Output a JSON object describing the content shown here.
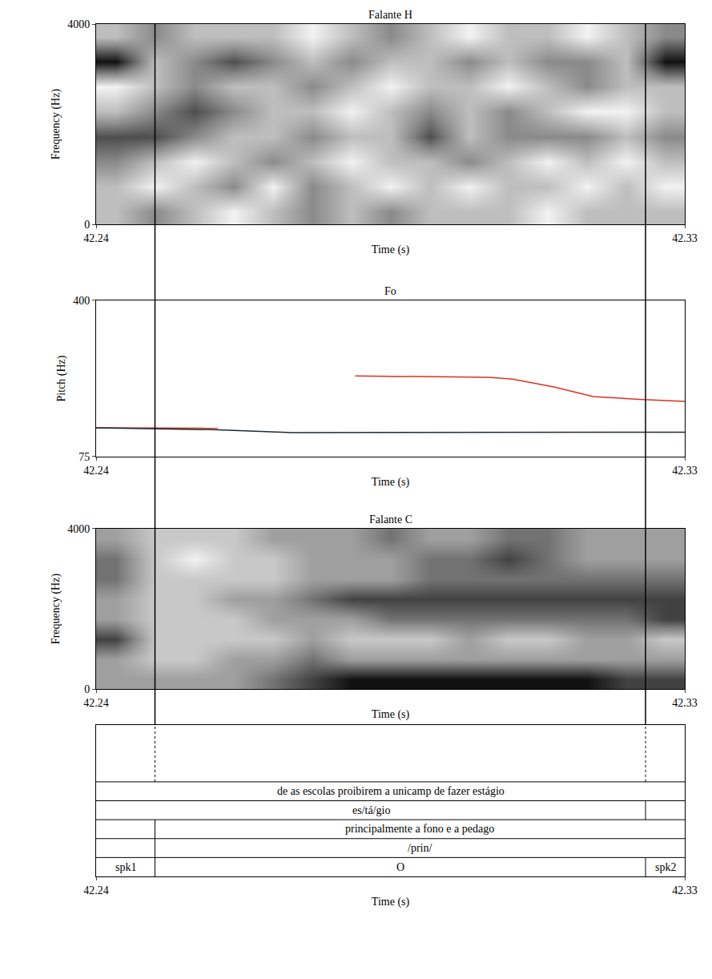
{
  "cursor_times": [
    42.249,
    42.324
  ],
  "chart_data": [
    {
      "type": "heatmap",
      "title": "Falante H",
      "xlabel": "Time (s)",
      "ylabel": "Frequency (Hz)",
      "xlim": [
        42.24,
        42.33
      ],
      "xticks": [
        42.24,
        42.33
      ],
      "ylim": [
        0,
        4000
      ],
      "yticks": [
        0,
        4000
      ],
      "x": [
        42.243,
        42.249,
        42.255,
        42.261,
        42.267,
        42.273,
        42.279,
        42.285,
        42.291,
        42.297,
        42.303,
        42.309,
        42.315,
        42.321,
        42.327
      ],
      "y": [
        250,
        750,
        1250,
        1750,
        2250,
        2750,
        3250,
        3750
      ],
      "z": [
        [
          0.5,
          0.6,
          0.5,
          0.4,
          0.5,
          0.6,
          0.5,
          0.6,
          0.5,
          0.5,
          0.5,
          0.4,
          0.5,
          0.5,
          0.5
        ],
        [
          0.5,
          0.4,
          0.5,
          0.6,
          0.4,
          0.6,
          0.5,
          0.4,
          0.5,
          0.4,
          0.5,
          0.5,
          0.4,
          0.5,
          0.4
        ],
        [
          0.6,
          0.5,
          0.4,
          0.5,
          0.6,
          0.5,
          0.4,
          0.5,
          0.5,
          0.6,
          0.5,
          0.4,
          0.5,
          0.4,
          0.5
        ],
        [
          0.7,
          0.7,
          0.6,
          0.5,
          0.5,
          0.6,
          0.5,
          0.5,
          0.7,
          0.5,
          0.6,
          0.6,
          0.6,
          0.5,
          0.6
        ],
        [
          0.5,
          0.6,
          0.7,
          0.6,
          0.5,
          0.5,
          0.4,
          0.5,
          0.6,
          0.5,
          0.6,
          0.5,
          0.4,
          0.4,
          0.5
        ],
        [
          0.4,
          0.5,
          0.6,
          0.5,
          0.5,
          0.6,
          0.5,
          0.4,
          0.5,
          0.5,
          0.4,
          0.5,
          0.6,
          0.5,
          0.5
        ],
        [
          0.8,
          0.5,
          0.6,
          0.7,
          0.6,
          0.5,
          0.6,
          0.5,
          0.5,
          0.6,
          0.5,
          0.6,
          0.6,
          0.5,
          0.8
        ],
        [
          0.5,
          0.6,
          0.5,
          0.5,
          0.5,
          0.4,
          0.5,
          0.6,
          0.5,
          0.4,
          0.5,
          0.5,
          0.4,
          0.5,
          0.6
        ]
      ]
    },
    {
      "type": "line",
      "title": "Fo",
      "xlabel": "Time (s)",
      "ylabel": "Pitch (Hz)",
      "xlim": [
        42.24,
        42.33
      ],
      "xticks": [
        42.24,
        42.33
      ],
      "ylim": [
        75,
        400
      ],
      "yticks": [
        75,
        400
      ],
      "x": [
        42.24,
        42.2586,
        42.27,
        42.2796,
        42.29,
        42.3,
        42.3037,
        42.31,
        42.316,
        42.323,
        42.33
      ],
      "series": [
        {
          "color": "#e0301e",
          "values": [
            135,
            134,
            null,
            243,
            242,
            240,
            236,
            220,
            200,
            194,
            190
          ]
        },
        {
          "color": "#1f2a33",
          "values": [
            135,
            131,
            125,
            125,
            125,
            125,
            125,
            125,
            125,
            126,
            126
          ]
        }
      ]
    },
    {
      "type": "heatmap",
      "title": "Falante C",
      "xlabel": "Time (s)",
      "ylabel": "Frequency (Hz)",
      "xlim": [
        42.24,
        42.33
      ],
      "xticks": [
        42.24,
        42.33
      ],
      "ylim": [
        0,
        4000
      ],
      "yticks": [
        0,
        4000
      ],
      "x": [
        42.243,
        42.249,
        42.255,
        42.261,
        42.267,
        42.273,
        42.279,
        42.285,
        42.291,
        42.297,
        42.303,
        42.309,
        42.315,
        42.321,
        42.327
      ],
      "y": [
        250,
        750,
        1250,
        1750,
        2250,
        2750,
        3250,
        3750
      ],
      "z": [
        [
          0.5,
          0.5,
          0.5,
          0.5,
          0.6,
          0.7,
          0.8,
          0.8,
          0.8,
          0.8,
          0.8,
          0.8,
          0.8,
          0.7,
          0.7
        ],
        [
          0.5,
          0.4,
          0.4,
          0.5,
          0.5,
          0.6,
          0.5,
          0.5,
          0.5,
          0.5,
          0.5,
          0.5,
          0.5,
          0.5,
          0.5
        ],
        [
          0.7,
          0.4,
          0.4,
          0.4,
          0.4,
          0.5,
          0.4,
          0.4,
          0.4,
          0.5,
          0.4,
          0.4,
          0.5,
          0.5,
          0.4
        ],
        [
          0.5,
          0.4,
          0.4,
          0.4,
          0.5,
          0.5,
          0.5,
          0.6,
          0.6,
          0.6,
          0.6,
          0.6,
          0.6,
          0.6,
          0.7
        ],
        [
          0.5,
          0.4,
          0.4,
          0.5,
          0.5,
          0.6,
          0.7,
          0.7,
          0.7,
          0.7,
          0.7,
          0.7,
          0.7,
          0.7,
          0.7
        ],
        [
          0.6,
          0.4,
          0.4,
          0.4,
          0.4,
          0.5,
          0.5,
          0.5,
          0.6,
          0.6,
          0.6,
          0.6,
          0.6,
          0.6,
          0.6
        ],
        [
          0.6,
          0.4,
          0.3,
          0.4,
          0.4,
          0.5,
          0.5,
          0.5,
          0.6,
          0.6,
          0.7,
          0.6,
          0.5,
          0.5,
          0.5
        ],
        [
          0.5,
          0.4,
          0.4,
          0.4,
          0.5,
          0.5,
          0.5,
          0.6,
          0.5,
          0.5,
          0.6,
          0.6,
          0.5,
          0.5,
          0.5
        ]
      ]
    },
    {
      "type": "textgrid",
      "xlabel": "Time (s)",
      "xlim": [
        42.24,
        42.33
      ],
      "xticks": [
        42.24,
        42.33
      ],
      "tiers": [
        {
          "boundaries": [
            42.249,
            42.324
          ],
          "labels": [
            null,
            null,
            null
          ],
          "line_style": "dotted"
        },
        {
          "boundaries": [],
          "labels": [
            "de as escolas proibirem a unicamp de fazer estágio"
          ],
          "line_style": "solid"
        },
        {
          "boundaries": [
            42.324
          ],
          "labels": [
            "es/tá/gio",
            null
          ],
          "line_style": "solid"
        },
        {
          "boundaries": [
            42.249
          ],
          "labels": [
            null,
            "principalmente a fono e a pedago"
          ],
          "line_style": "solid"
        },
        {
          "boundaries": [
            42.249
          ],
          "labels": [
            null,
            "/prin/"
          ],
          "line_style": "solid"
        },
        {
          "boundaries": [
            42.249,
            42.324
          ],
          "labels": [
            "spk1",
            "O",
            "spk2"
          ],
          "line_style": "solid"
        }
      ]
    }
  ]
}
